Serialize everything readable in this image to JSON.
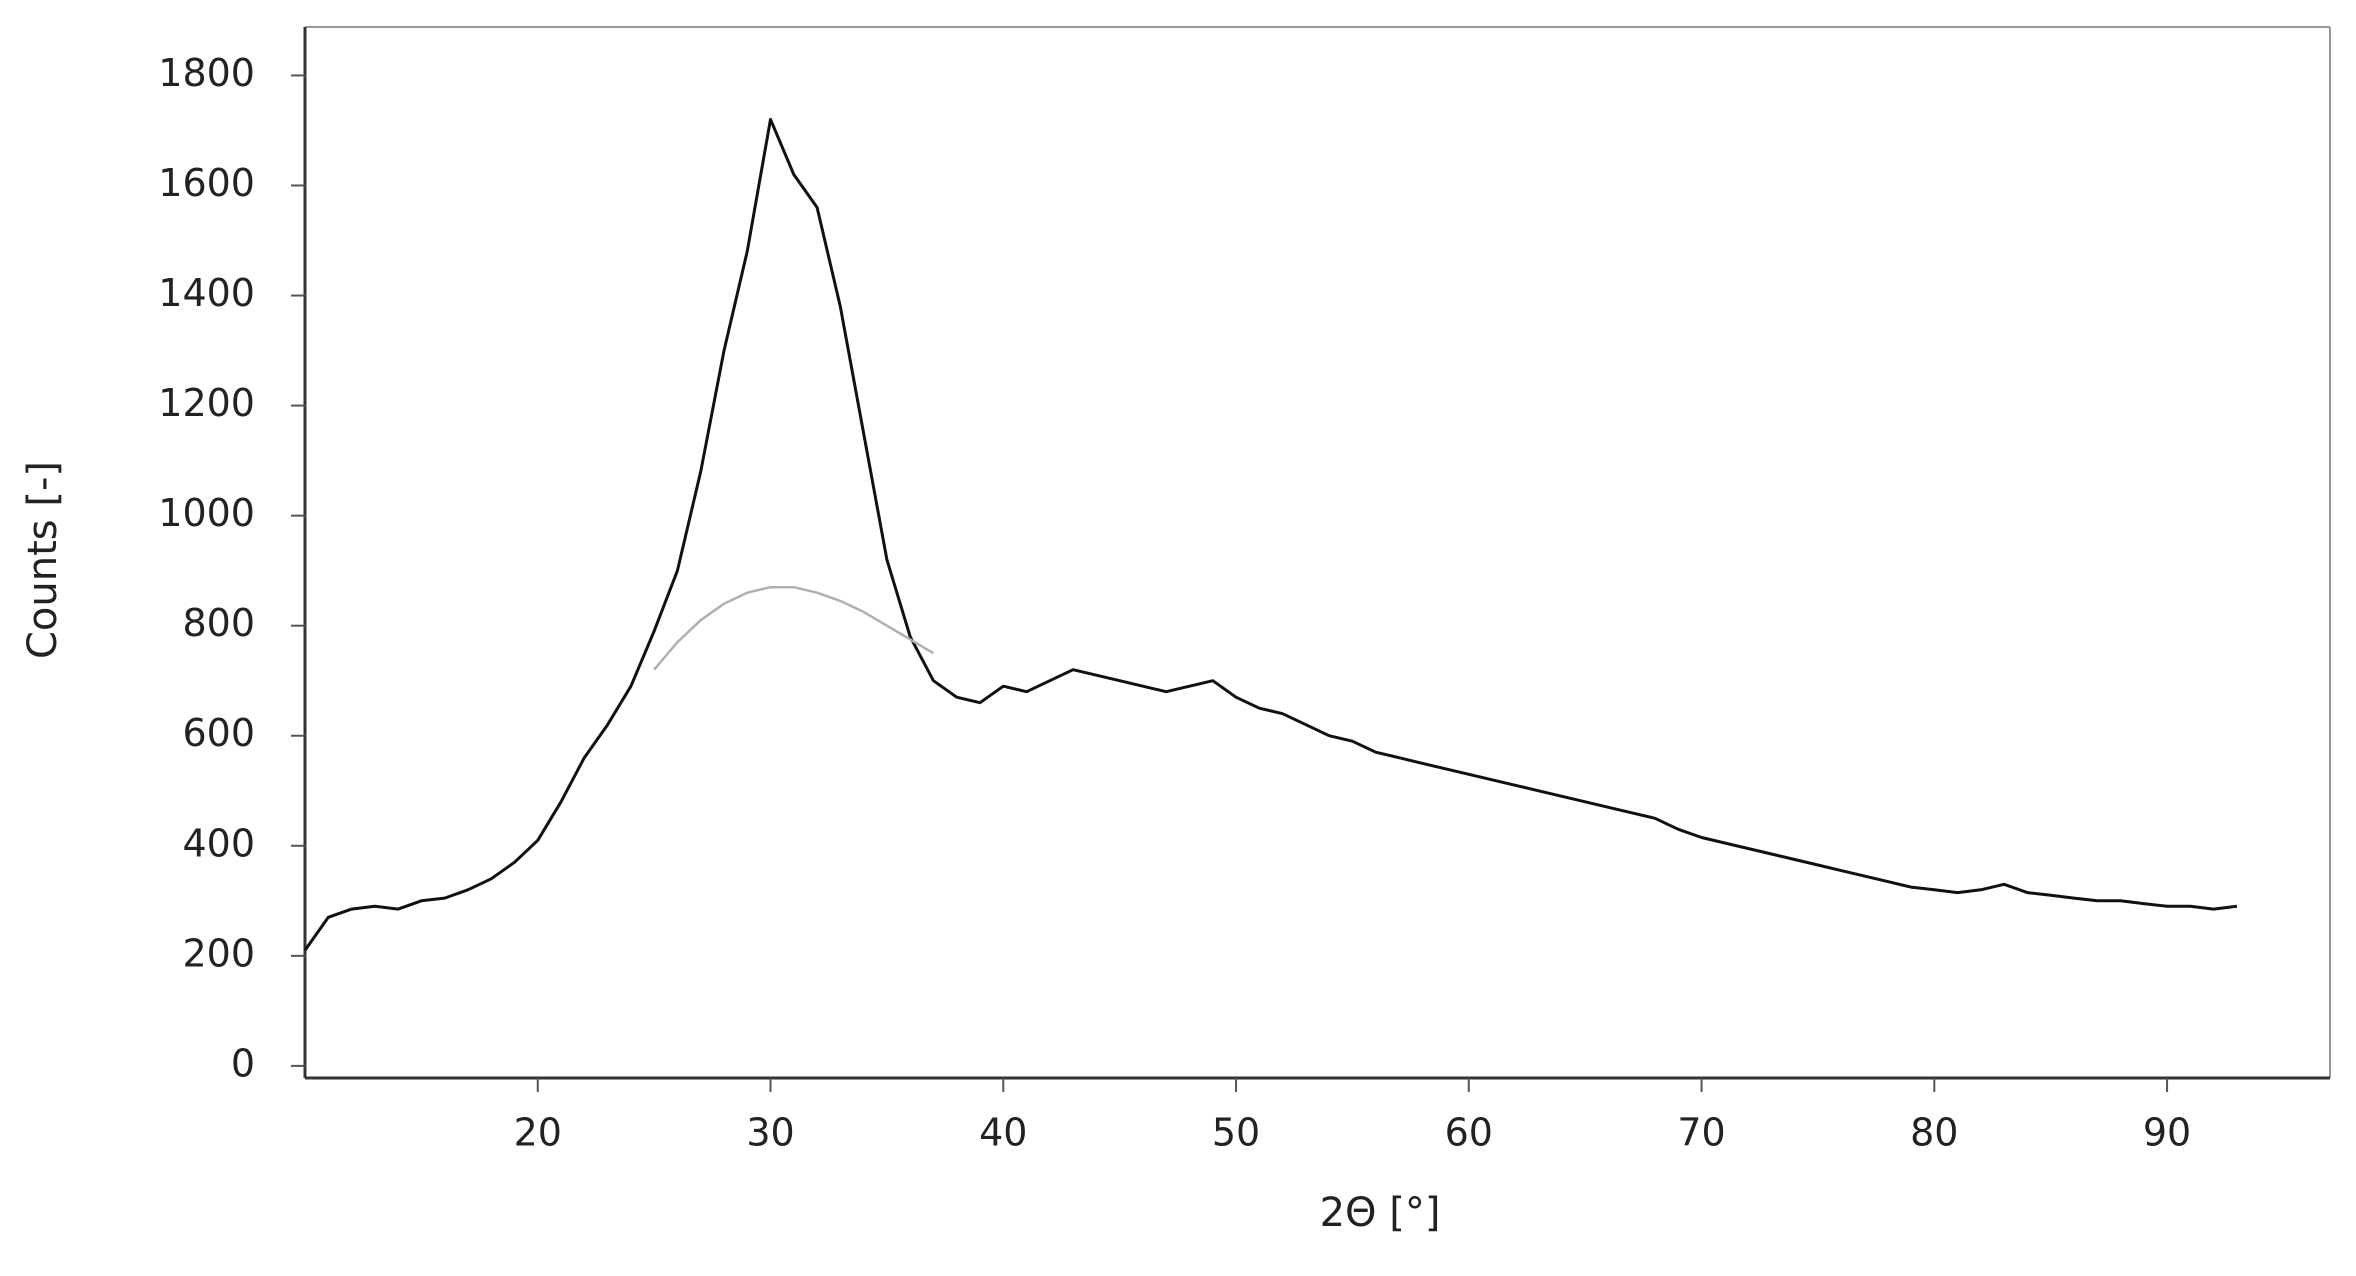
{
  "chart_data": {
    "type": "line",
    "x_label": "2Θ [°]",
    "y_label": "Counts [-]",
    "x": [
      10,
      11,
      12,
      13,
      14,
      15,
      16,
      17,
      18,
      19,
      20,
      21,
      22,
      23,
      24,
      25,
      26,
      27,
      28,
      29,
      30,
      31,
      32,
      33,
      34,
      35,
      36,
      37,
      38,
      39,
      40,
      41,
      42,
      43,
      44,
      45,
      46,
      47,
      48,
      49,
      50,
      51,
      52,
      53,
      54,
      55,
      56,
      57,
      58,
      59,
      60,
      61,
      62,
      63,
      64,
      65,
      66,
      67,
      68,
      69,
      70,
      71,
      72,
      73,
      74,
      75,
      76,
      77,
      78,
      79,
      80,
      81,
      82,
      83,
      84,
      85,
      86,
      87,
      88,
      89,
      90,
      91,
      92,
      93
    ],
    "series": [
      {
        "color": "#111111",
        "values": [
          210,
          270,
          285,
          290,
          285,
          300,
          305,
          320,
          340,
          370,
          410,
          480,
          560,
          620,
          690,
          790,
          900,
          1080,
          1300,
          1480,
          1720,
          1620,
          1560,
          1380,
          1150,
          920,
          780,
          700,
          670,
          660,
          690,
          680,
          700,
          720,
          710,
          700,
          690,
          680,
          690,
          700,
          670,
          650,
          640,
          620,
          600,
          590,
          570,
          560,
          550,
          540,
          530,
          520,
          510,
          500,
          490,
          480,
          470,
          460,
          450,
          430,
          415,
          405,
          395,
          385,
          375,
          365,
          355,
          345,
          335,
          325,
          320,
          315,
          320,
          330,
          315,
          310,
          305,
          300,
          300,
          295,
          290,
          290,
          285,
          290
        ]
      },
      {
        "color": "#b0b0b0",
        "values": [
          null,
          null,
          null,
          null,
          null,
          null,
          null,
          null,
          null,
          null,
          null,
          null,
          null,
          null,
          null,
          720,
          770,
          810,
          840,
          860,
          870,
          870,
          860,
          845,
          825,
          800,
          775,
          750,
          null,
          null,
          null,
          null,
          null,
          null,
          null,
          null,
          null,
          null,
          null,
          null,
          null,
          null,
          null,
          null,
          null,
          null,
          null,
          null,
          null,
          null,
          null,
          null,
          null,
          null,
          null,
          null,
          null,
          null,
          null,
          null,
          null,
          null,
          null,
          null,
          null,
          null,
          null,
          null,
          null,
          null,
          null,
          null,
          null,
          null,
          null,
          null,
          null,
          null,
          null,
          null,
          null,
          null,
          null,
          null
        ]
      }
    ],
    "xlim": [
      10,
      97
    ],
    "ylim": [
      -22,
      1888
    ],
    "xticks": [
      20,
      30,
      40,
      50,
      60,
      70,
      80,
      90
    ],
    "yticks": [
      0,
      200,
      400,
      600,
      800,
      1000,
      1200,
      1400,
      1600,
      1800
    ]
  }
}
